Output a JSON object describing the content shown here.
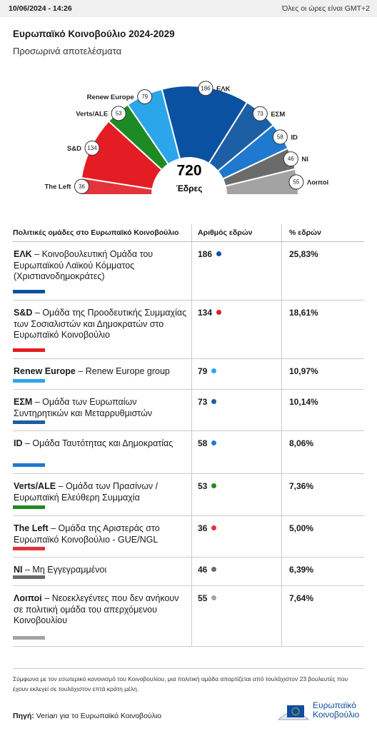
{
  "header": {
    "timestamp": "10/06/2024 - 14:26",
    "timezone_note": "Όλες οι ώρες είναι GMT+2"
  },
  "chart_data": {
    "type": "hemicycle",
    "title": "Ευρωπαϊκό Κοινοβούλιο 2024-2029",
    "subtitle": "Προσωρινά αποτελέσματα",
    "total": 720,
    "total_label": "Έδρες",
    "categories": [
      "The Left",
      "S&D",
      "Verts/ALE",
      "Renew Europe",
      "ΕΛΚ",
      "ΕΣΜ",
      "ID",
      "NI",
      "Λοιποί"
    ],
    "values": [
      36,
      134,
      53,
      79,
      186,
      73,
      58,
      46,
      55
    ],
    "colors": [
      "#e4333b",
      "#e31d23",
      "#1e8a24",
      "#2ba6ea",
      "#0b51a2",
      "#1c5fa4",
      "#1f79cf",
      "#6b6b6b",
      "#a3a3a3"
    ]
  },
  "table": {
    "headers": [
      "Πολιτικές ομάδες στο Ευρωπαϊκό Κοινοβούλιο",
      "Αριθμός εδρών",
      "% εδρών"
    ],
    "rows": [
      {
        "party": "ΕΛΚ",
        "description": "– Κοινοβουλευτική Ομάδα του Ευρωπαϊκού Λαϊκού Κόμματος (Χριστιανοδημοκράτες)",
        "seats": 186,
        "percent": "25,83%"
      },
      {
        "party": "S&D",
        "description": "– Ομάδα της Προοδευτικής Συμμαχίας των Σοσιαλιστών και Δημοκρατών στο Ευρωπαϊκό Κοινοβούλιο",
        "seats": 134,
        "percent": "18,61%"
      },
      {
        "party": "Renew Europe",
        "description": "– Renew Europe group",
        "seats": 79,
        "percent": "10,97%"
      },
      {
        "party": "ΕΣΜ",
        "description": "– Ομάδα των Ευρωπαίων Συντηρητικών και Μεταρρυθμιστών",
        "seats": 73,
        "percent": "10,14%"
      },
      {
        "party": "ID",
        "description": "– Ομάδα Ταυτότητας και Δημοκρατίας",
        "seats": 58,
        "percent": "8,06%"
      },
      {
        "party": "Verts/ALE",
        "description": "– Ομάδα των Πρασίνων / Ευρωπαϊκή Ελεύθερη Συμμαχία",
        "seats": 53,
        "percent": "7,36%"
      },
      {
        "party": "The Left",
        "description": "– Ομάδα της Αριστεράς στο Ευρωπαϊκό Κοινοβούλιο - GUE/NGL",
        "seats": 36,
        "percent": "5,00%"
      },
      {
        "party": "NI",
        "description": "– Μη Εγγεγραμμένοι",
        "seats": 46,
        "percent": "6,39%"
      },
      {
        "party": "Λοιποί",
        "description": "– Νεοεκλεγέντες που δεν ανήκουν σε πολιτική ομάδα του απερχόμενου Κοινοβουλίου",
        "seats": 55,
        "percent": "7,64%"
      }
    ]
  },
  "footnote": "Σύμφωνα με τον εσωτερικό κανονισμό του Κοινοβουλίου, μια πολιτική ομάδα απαρτίζεται από τουλάχιστον 23 βουλευτές που έχουν εκλεγεί σε τουλάχιστον επτά κράτη μέλη.",
  "source": {
    "label": "Πηγή:",
    "text": "Verian για το Ευρωπαϊκό Κοινοβούλιο"
  },
  "logo": {
    "lines": [
      "Ευρωπαϊκό",
      "Κοινοβούλιο"
    ]
  }
}
